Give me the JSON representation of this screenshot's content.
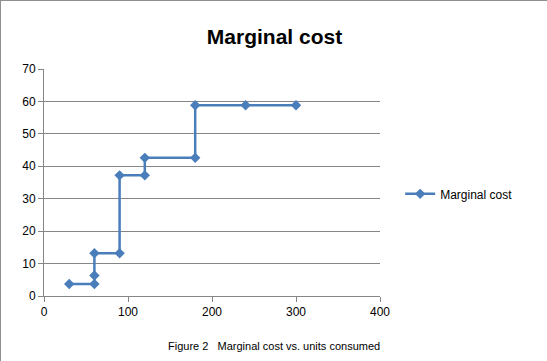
{
  "chart_data": {
    "type": "line",
    "title": "Marginal cost",
    "x": [
      30,
      60,
      60,
      60,
      90,
      90,
      120,
      120,
      180,
      180,
      240,
      300
    ],
    "series": [
      {
        "name": "Marginal cost",
        "color": "#4a7ebb",
        "values": [
          3.7,
          3.7,
          6.3,
          13.2,
          13.2,
          37.2,
          37.2,
          42.6,
          42.6,
          58.8,
          58.8,
          58.8
        ]
      }
    ],
    "xlim": [
      0,
      400
    ],
    "xticks": [
      0,
      100,
      200,
      300,
      400
    ],
    "ylim": [
      0,
      70
    ],
    "yticks": [
      0,
      10,
      20,
      30,
      40,
      50,
      60,
      70
    ],
    "grid": true,
    "legend": "right",
    "marker": "diamond",
    "annotations": [
      "Figure 2   Marginal cost vs. units consumed"
    ]
  }
}
